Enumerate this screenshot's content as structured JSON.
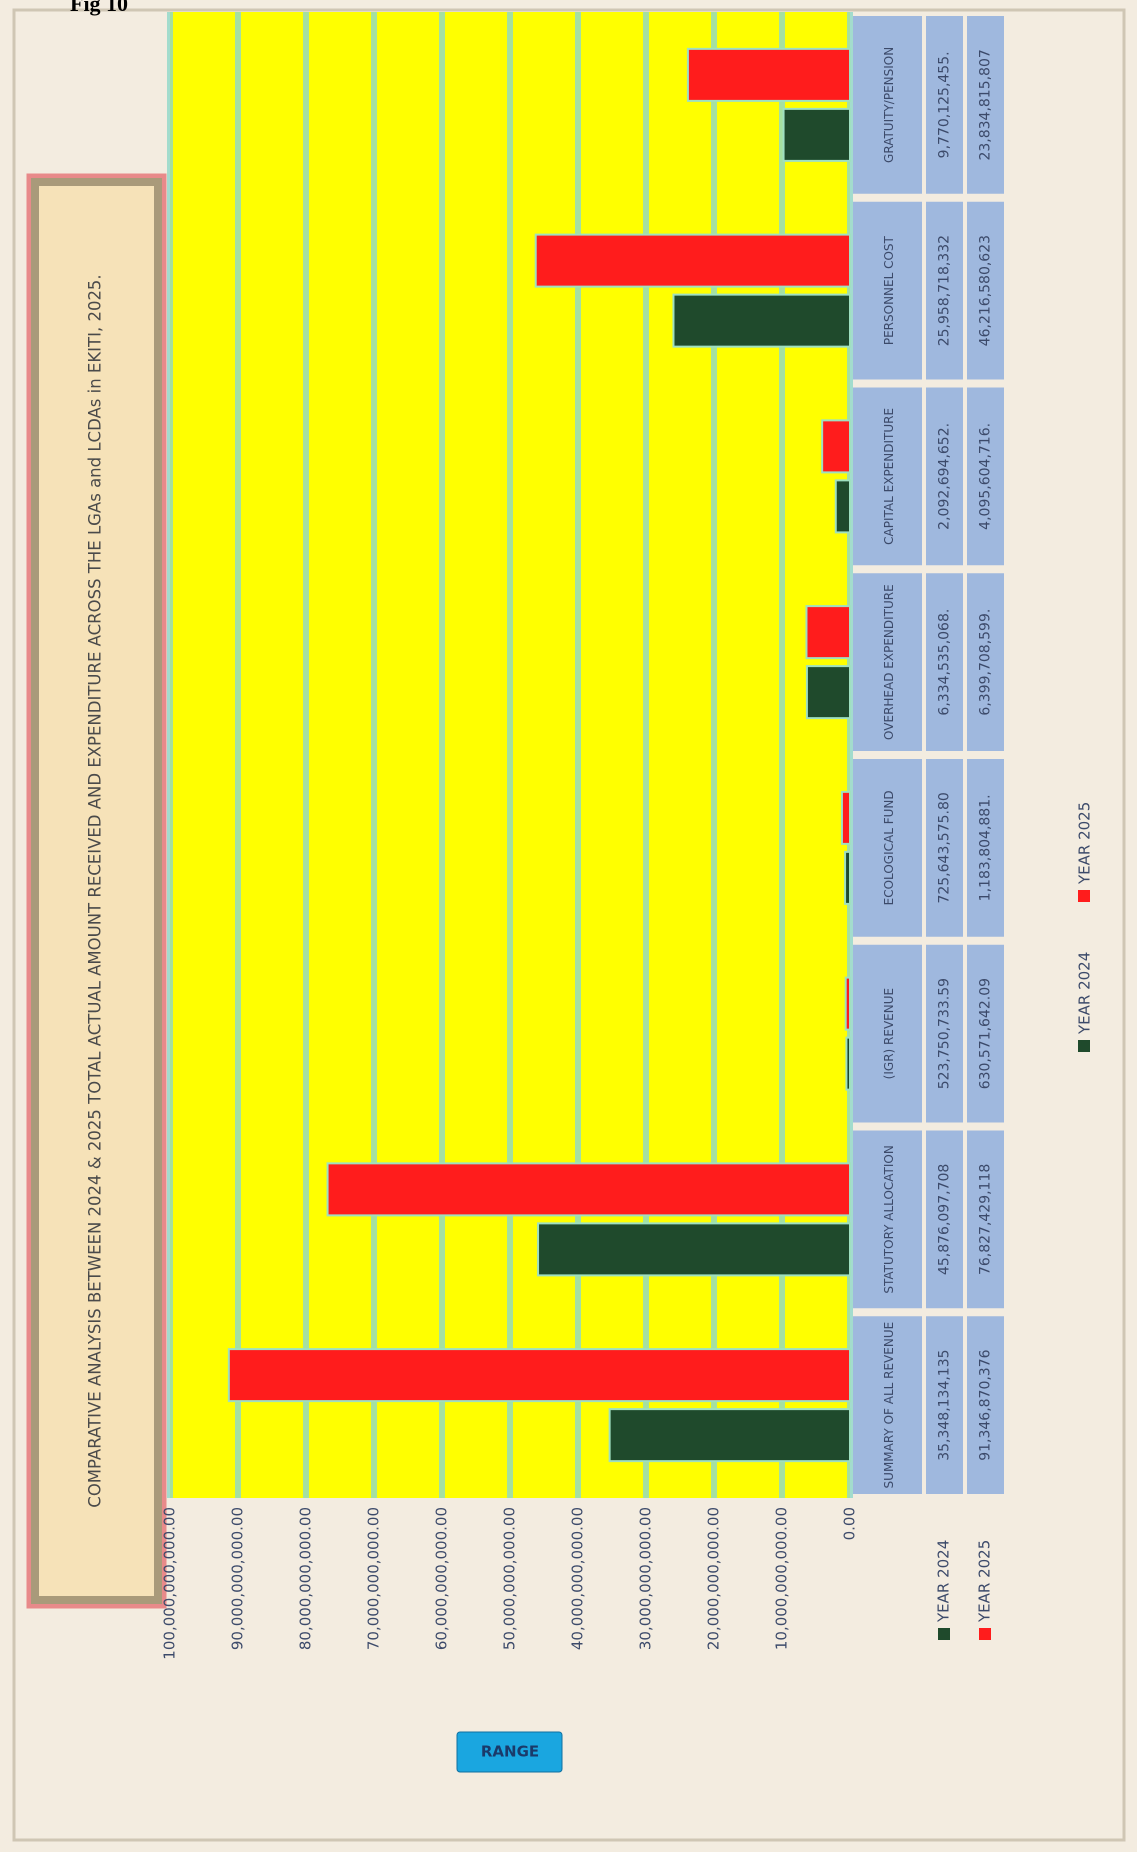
{
  "heading": "Fig 10",
  "button": "RANGE",
  "chart_data": {
    "type": "bar",
    "title": "COMPARATIVE ANALYSIS BETWEEN 2024 & 2025 TOTAL ACTUAL AMOUNT RECEIVED AND EXPENDITURE ACROSS THE LGAs and LCDAs in EKITI, 2025.",
    "categories": [
      "SUMMARY OF ALL REVENUE",
      "STATUTORY ALLOCATION",
      "(IGR) REVENUE",
      "ECOLOGICAL FUND",
      "OVERHEAD EXPENDITURE",
      "CAPITAL EXPENDITURE",
      "PERSONNEL COST",
      "GRATUITY/PENSION"
    ],
    "series": [
      {
        "name": "YEAR 2024",
        "color": "#1f4a2c",
        "values": [
          35348134135,
          45876097708,
          523750733.59,
          725643575.8,
          6334535068,
          2092694652,
          25958718332,
          9770125455
        ],
        "value_labels": [
          "35,348,134,135",
          "45,876,097,708",
          "523,750,733.59",
          "725,643,575.80",
          "6,334,535,068.",
          "2,092,694,652.",
          "25,958,718,332",
          "9,770,125,455."
        ]
      },
      {
        "name": "YEAR 2025",
        "color": "#ff1c1c",
        "values": [
          91346870376,
          76827429118,
          630571642.09,
          1183804881,
          6399708599,
          4095604716,
          46216580623,
          23834815807
        ],
        "value_labels": [
          "91,346,870,376",
          "76,827,429,118",
          "630,571,642.09",
          "1,183,804,881.",
          "6,399,708,599.",
          "4,095,604,716.",
          "46,216,580,623",
          "23,834,815,807"
        ]
      }
    ],
    "ylim": [
      0,
      100000000000
    ],
    "yticks": [
      {
        "value": 0,
        "label": "0.00"
      },
      {
        "value": 10000000000,
        "label": "10,000,000,000.00"
      },
      {
        "value": 20000000000,
        "label": "20,000,000,000.00"
      },
      {
        "value": 30000000000,
        "label": "30,000,000,000.00"
      },
      {
        "value": 40000000000,
        "label": "40,000,000,000.00"
      },
      {
        "value": 50000000000,
        "label": "50,000,000,000.00"
      },
      {
        "value": 60000000000,
        "label": "60,000,000,000.00"
      },
      {
        "value": 70000000000,
        "label": "70,000,000,000.00"
      },
      {
        "value": 80000000000,
        "label": "80,000,000,000.00"
      },
      {
        "value": 90000000000,
        "label": "90,000,000,000.00"
      },
      {
        "value": 100000000000,
        "label": "100,000,000,000.00"
      }
    ],
    "grid": true,
    "legend": "bottom"
  }
}
